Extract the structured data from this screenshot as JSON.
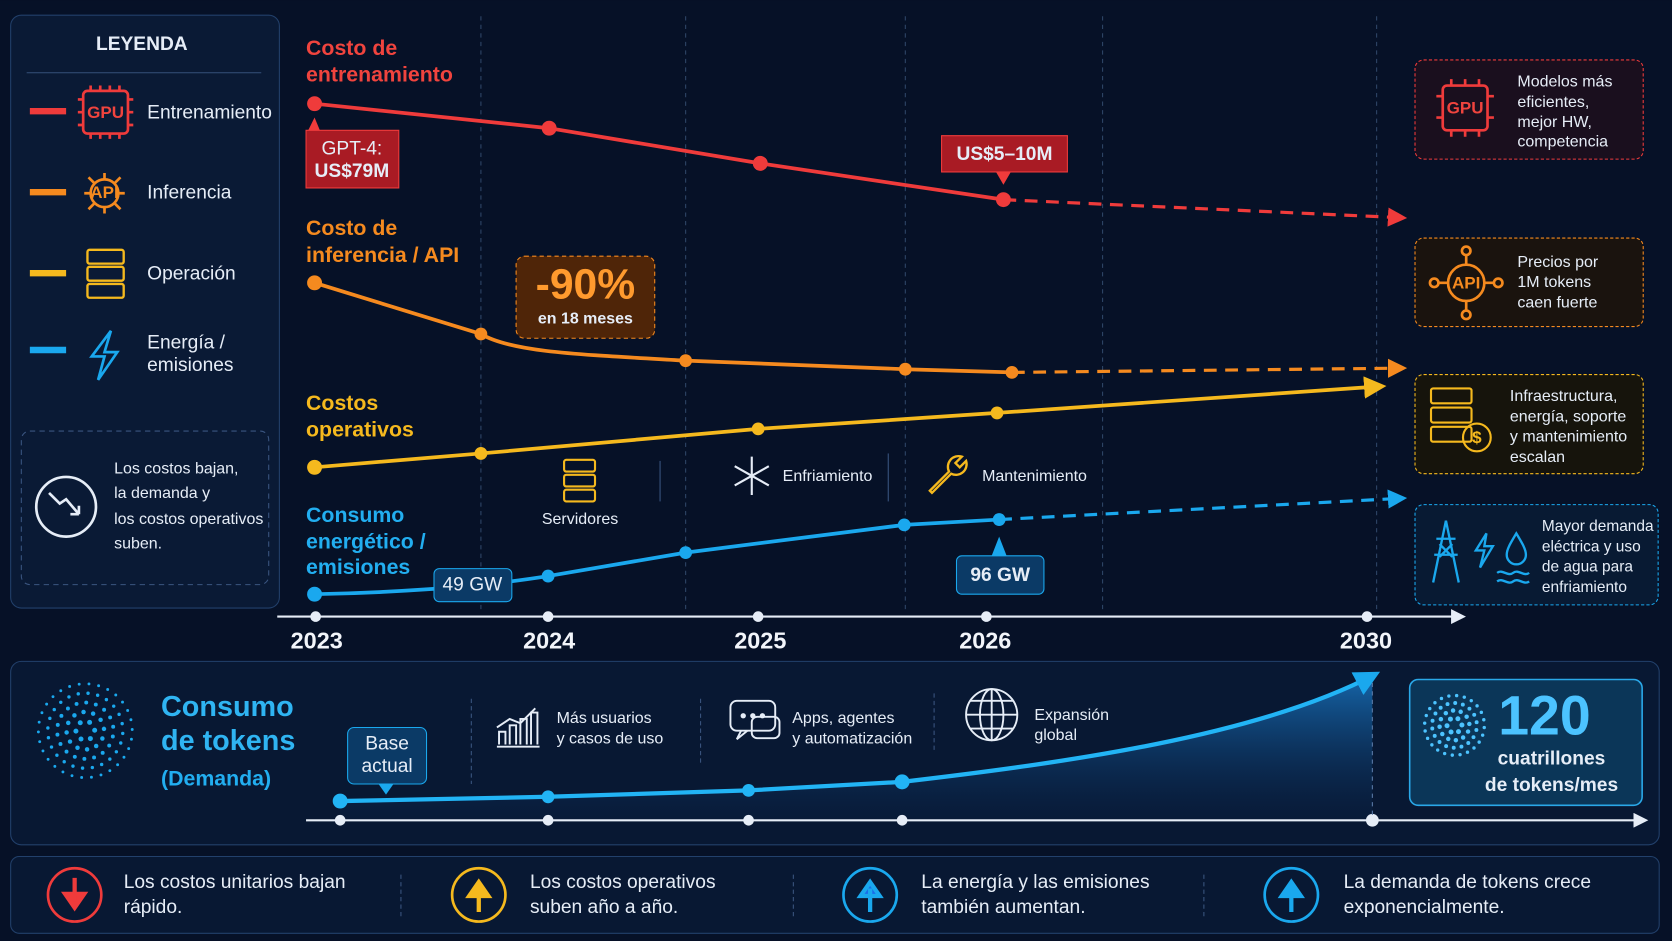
{
  "legend": {
    "title": "LEYENDA",
    "items": [
      "Entrenamiento",
      "Inferencia",
      "Operación",
      [
        "Energía /",
        "emisiones"
      ]
    ],
    "note": [
      "Los costos bajan,",
      "la demanda y",
      "los costos operativos",
      "suben."
    ]
  },
  "chart": {
    "series_labels": [
      [
        "Costo de",
        "entrenamiento"
      ],
      [
        "Costo de",
        "inferencia / API"
      ],
      [
        "Costos",
        "operativos"
      ],
      [
        "Consumo",
        "energético /",
        "emisiones"
      ]
    ],
    "years": [
      "2023",
      "2024",
      "2025",
      "2026",
      "2030"
    ],
    "callouts": {
      "gpt4": [
        "GPT-4:",
        "US$79M"
      ],
      "training_2026": "US$5–10M",
      "drop": "-90%",
      "drop_period": "en 18 meses",
      "power_2024": "49 GW",
      "power_2026": "96 GW"
    },
    "operations": [
      "Servidores",
      "Enfriamiento",
      "Mantenimiento"
    ]
  },
  "side_notes": [
    [
      "Modelos más",
      "eficientes,",
      "mejor HW,",
      "competencia"
    ],
    [
      "Precios por",
      "1M tokens",
      "caen fuerte"
    ],
    [
      "Infraestructura,",
      "energía, soporte",
      "y mantenimiento",
      "escalan"
    ],
    [
      "Mayor demanda",
      "eléctrica y uso",
      "de agua para",
      "enfriamiento"
    ]
  ],
  "demand": {
    "title": [
      "Consumo",
      "de tokens"
    ],
    "subtitle": "(Demanda)",
    "base": [
      "Base",
      "actual"
    ],
    "drivers": [
      [
        "Más usuarios",
        "y casos de uso"
      ],
      [
        "Apps, agentes",
        "y automatización"
      ],
      [
        "Expansión",
        "global"
      ]
    ],
    "total": "120",
    "total_unit": [
      "cuatrillones",
      "de tokens/mes"
    ]
  },
  "footer": [
    [
      "Los costos unitarios bajan",
      "rápido."
    ],
    [
      "Los costos operativos",
      "suben año a año."
    ],
    [
      "La energía y las emisiones",
      "también aumentan."
    ],
    [
      "La demanda de tokens crece",
      "exponencialmente."
    ]
  ]
}
